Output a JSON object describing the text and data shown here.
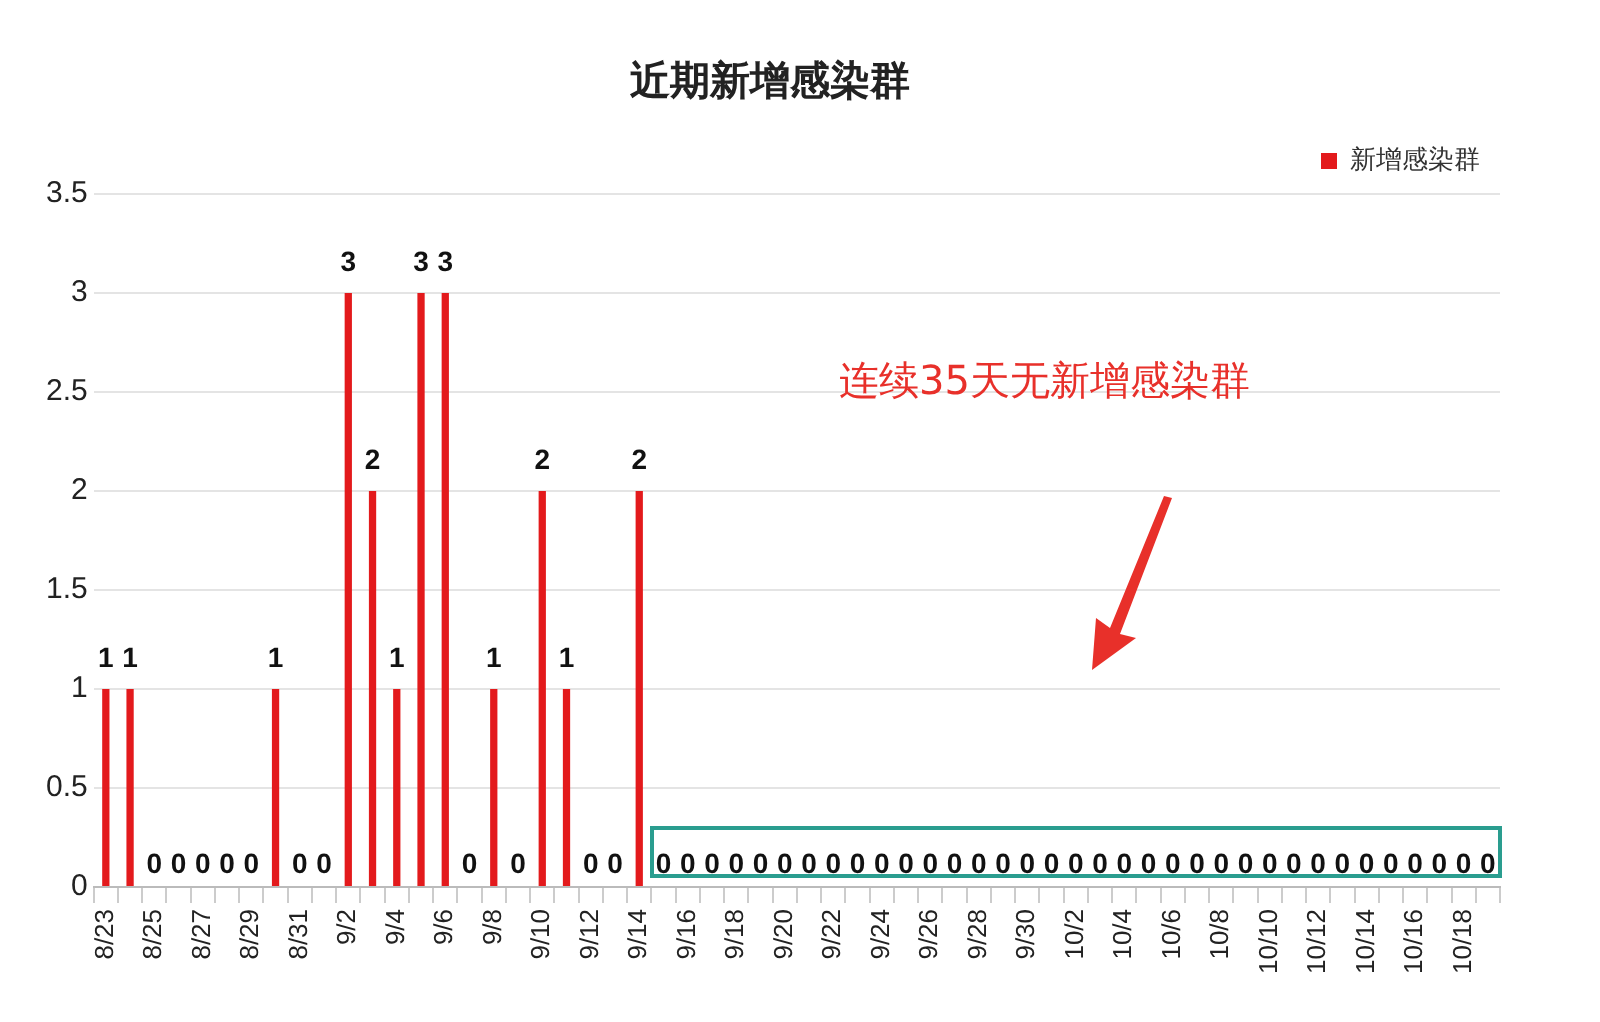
{
  "chart_data": {
    "type": "bar",
    "title": "近期新增感染群",
    "categories": [
      "8/23",
      null,
      "8/25",
      null,
      "8/27",
      null,
      "8/29",
      null,
      "8/31",
      null,
      "9/2",
      null,
      "9/4",
      null,
      "9/6",
      null,
      "9/8",
      null,
      "9/10",
      null,
      "9/12",
      null,
      "9/14",
      null,
      "9/16",
      null,
      "9/18",
      null,
      "9/20",
      null,
      "9/22",
      null,
      "9/24",
      null,
      "9/26",
      null,
      "9/28",
      null,
      "9/30",
      null,
      "10/2",
      null,
      "10/4",
      null,
      "10/6",
      null,
      "10/8",
      null,
      "10/10",
      null,
      "10/12",
      null,
      "10/14",
      null,
      "10/16",
      null,
      "10/18",
      null
    ],
    "series": [
      {
        "name": "新增感染群",
        "color": "#e31a1c",
        "values": [
          1,
          1,
          0,
          0,
          0,
          0,
          0,
          1,
          0,
          0,
          3,
          2,
          1,
          3,
          3,
          0,
          1,
          0,
          2,
          1,
          0,
          0,
          2,
          0,
          0,
          0,
          0,
          0,
          0,
          0,
          0,
          0,
          0,
          0,
          0,
          0,
          0,
          0,
          0,
          0,
          0,
          0,
          0,
          0,
          0,
          0,
          0,
          0,
          0,
          0,
          0,
          0,
          0,
          0,
          0,
          0,
          0,
          0
        ]
      }
    ],
    "ylim": [
      0,
      3.5
    ],
    "yticks": [
      0,
      0.5,
      1,
      1.5,
      2,
      2.5,
      3,
      3.5
    ],
    "grid": "y",
    "legend": "top right",
    "data_labels": true,
    "annotations": [
      "连续35天无新增感染群"
    ]
  }
}
